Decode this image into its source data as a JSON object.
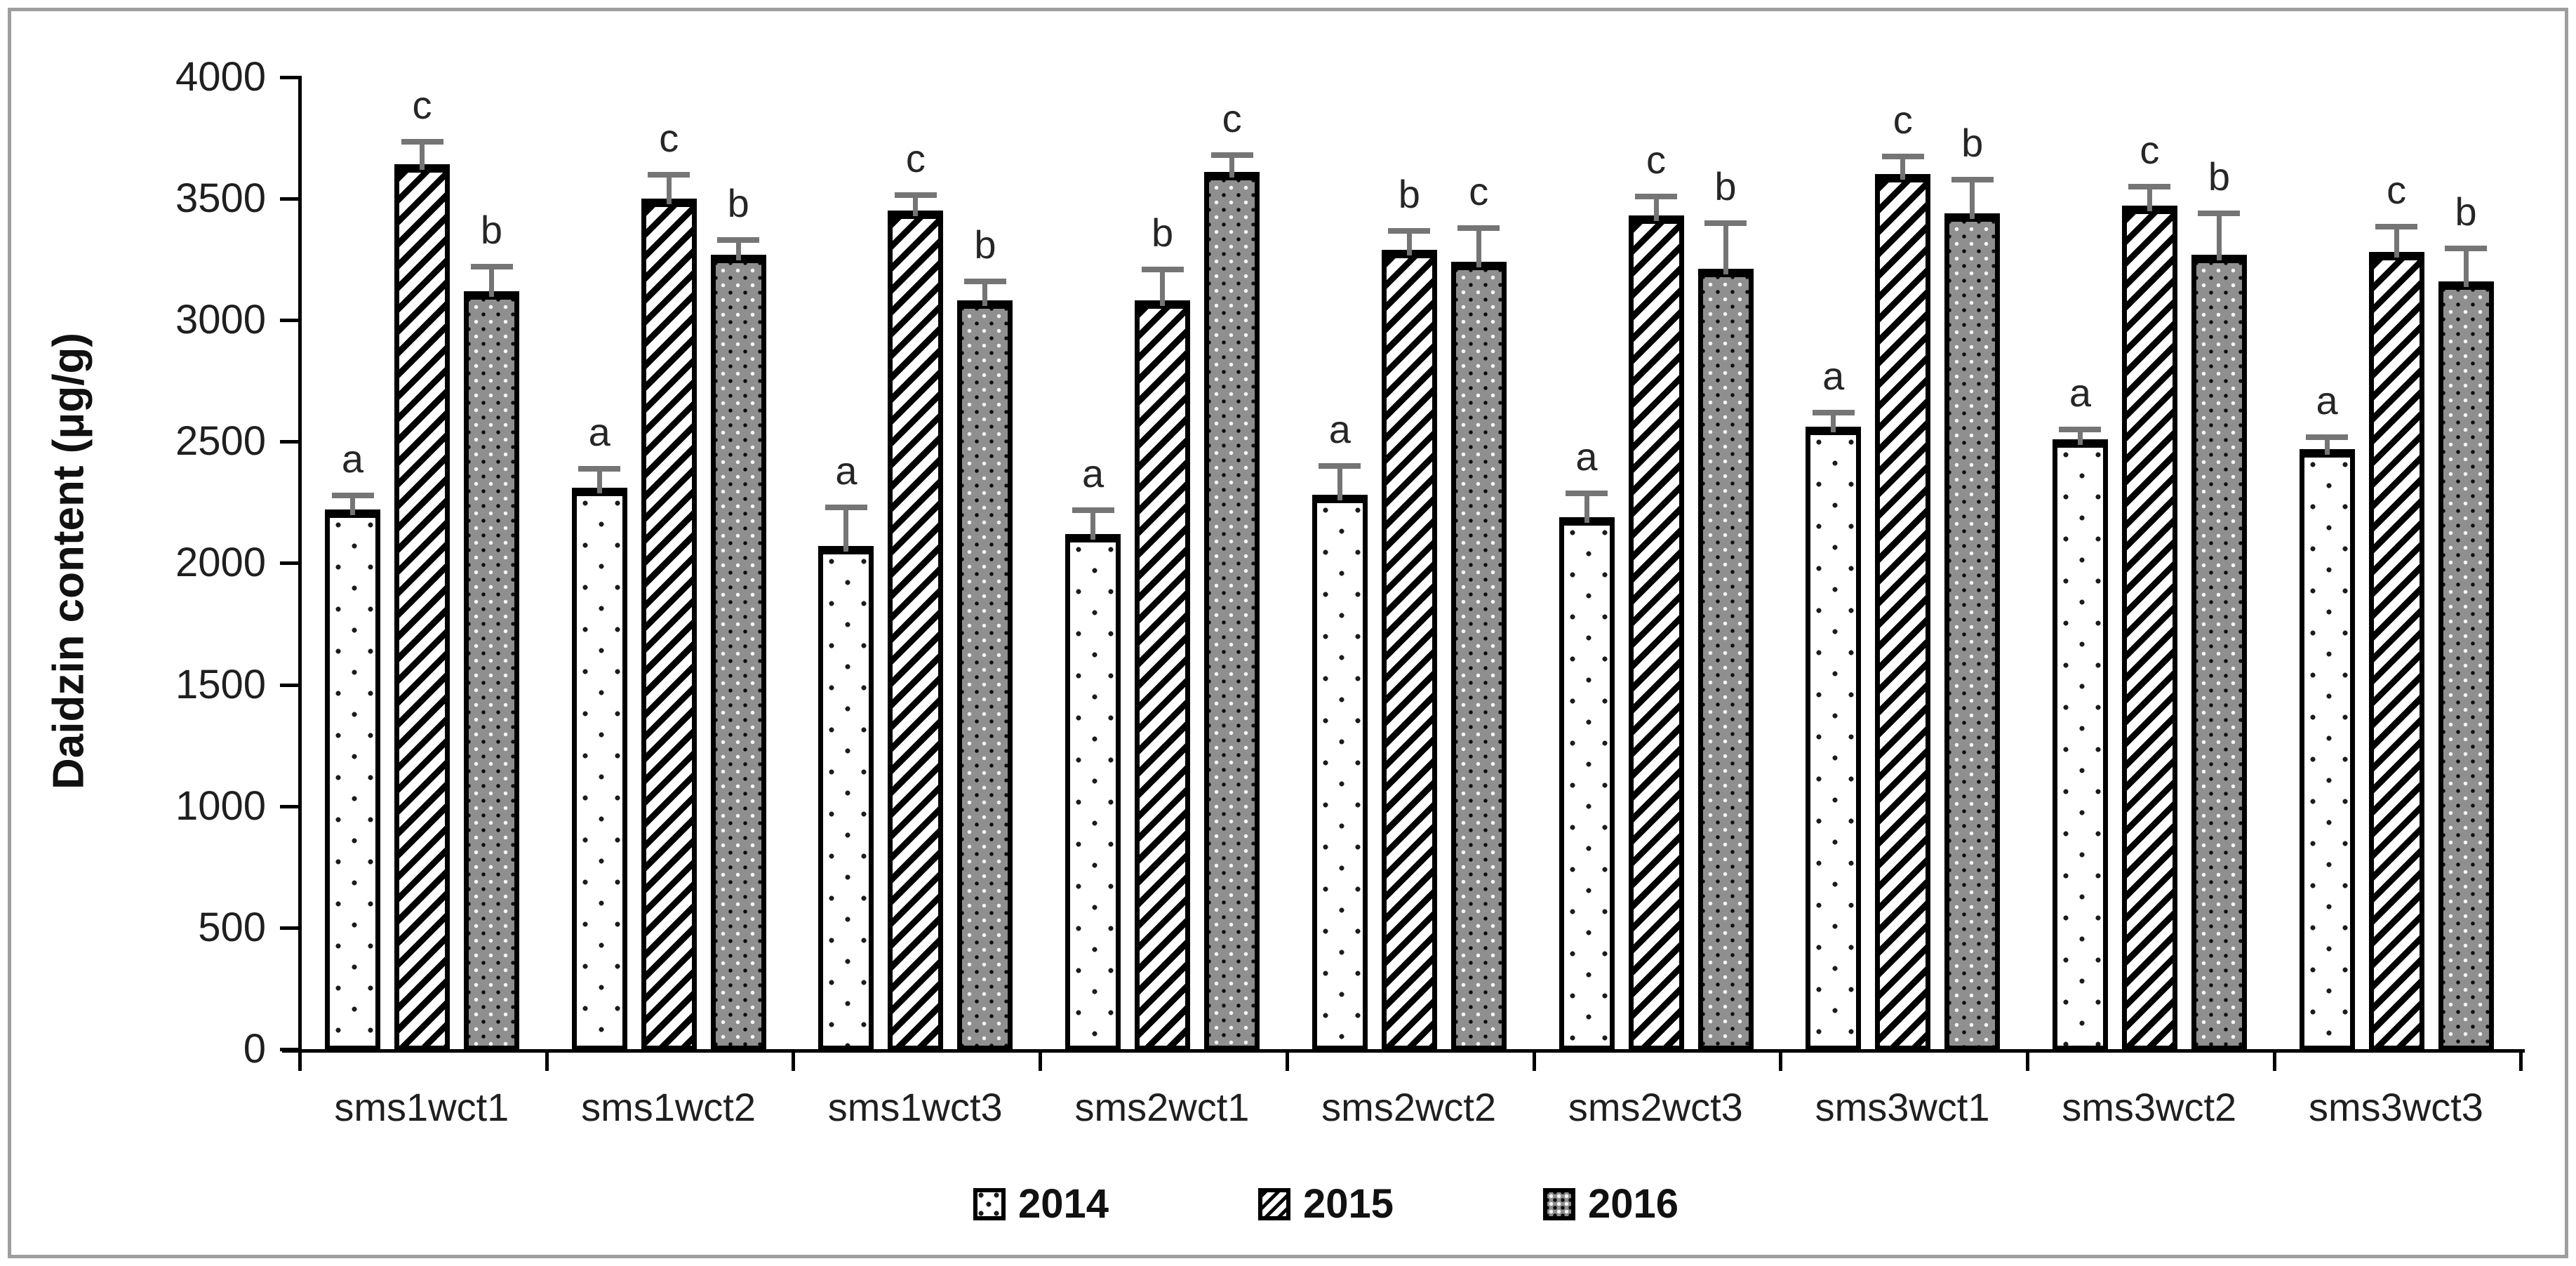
{
  "figure": {
    "background": "#ffffff",
    "frame_color": "#9e9e9e"
  },
  "colors": {
    "bar_outline": "#000000",
    "series_2014_fill": "#ffffff",
    "series_2015_stripe": "#000000",
    "series_2016_fill": "#8f8f8f",
    "error_bar": "#757575",
    "text": "#1f1f1f"
  },
  "chart_data": {
    "type": "bar",
    "title": "",
    "xlabel": "",
    "ylabel": "Daidzin content (μg/g)",
    "ylim": [
      0,
      4000
    ],
    "yticks": [
      0,
      500,
      1000,
      1500,
      2000,
      2500,
      3000,
      3500,
      4000
    ],
    "grid": false,
    "legend_position": "bottom",
    "categories": [
      "sms1wct1",
      "sms1wct2",
      "sms1wct3",
      "sms2wct1",
      "sms2wct2",
      "sms2wct3",
      "sms3wct1",
      "sms3wct2",
      "sms3wct3"
    ],
    "series": [
      {
        "name": "2014",
        "pattern": "white-dotted",
        "values": [
          2220,
          2310,
          2070,
          2120,
          2280,
          2190,
          2560,
          2510,
          2470
        ],
        "errors": [
          70,
          90,
          170,
          110,
          130,
          110,
          70,
          50,
          60
        ],
        "letters": [
          "a",
          "a",
          "a",
          "a",
          "a",
          "a",
          "a",
          "a",
          "a"
        ]
      },
      {
        "name": "2015",
        "pattern": "diagonal-stripes",
        "values": [
          3640,
          3500,
          3450,
          3080,
          3290,
          3430,
          3600,
          3470,
          3280
        ],
        "errors": [
          105,
          110,
          75,
          140,
          90,
          90,
          85,
          90,
          115
        ],
        "letters": [
          "c",
          "c",
          "c",
          "b",
          "b",
          "c",
          "c",
          "c",
          "c"
        ]
      },
      {
        "name": "2016",
        "pattern": "gray-dot-grid",
        "values": [
          3120,
          3270,
          3080,
          3610,
          3240,
          3210,
          3440,
          3270,
          3160
        ],
        "errors": [
          110,
          70,
          90,
          80,
          150,
          200,
          150,
          180,
          145
        ],
        "letters": [
          "b",
          "b",
          "b",
          "c",
          "c",
          "b",
          "b",
          "b",
          "b"
        ]
      }
    ],
    "legend": [
      "2014",
      "2015",
      "2016"
    ]
  }
}
